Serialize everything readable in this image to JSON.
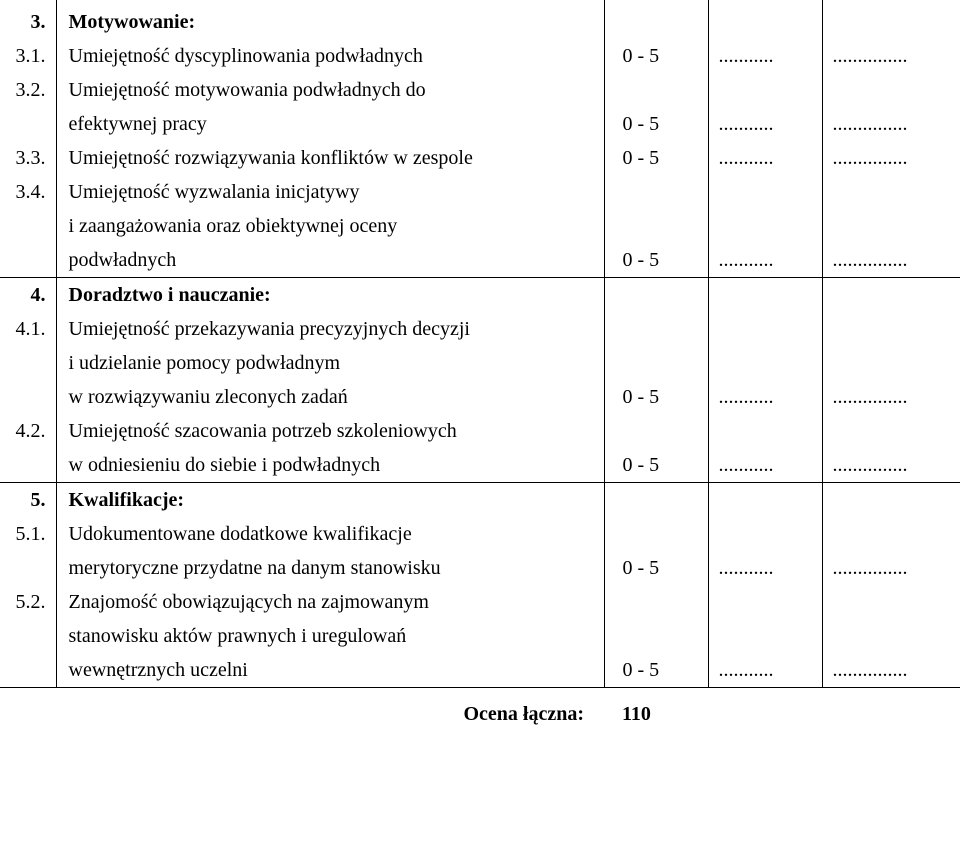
{
  "rows": [
    {
      "num": "3.",
      "text": "Motywowanie:",
      "bold": true,
      "score": "",
      "dots1": "",
      "dots2": "",
      "sep": "none"
    },
    {
      "num": "3.1.",
      "text": "Umiejętność dyscyplinowania podwładnych",
      "bold": false,
      "score": "0 - 5",
      "dots1": "...........",
      "dots2": "...............",
      "sep": "none"
    },
    {
      "num": "3.2.",
      "text": "Umiejętność motywowania podwładnych do",
      "bold": false,
      "score": "",
      "dots1": "",
      "dots2": "",
      "sep": "none"
    },
    {
      "num": "",
      "text": "efektywnej pracy",
      "bold": false,
      "score": "0 - 5",
      "dots1": "...........",
      "dots2": "...............",
      "sep": "none"
    },
    {
      "num": "3.3.",
      "text": "Umiejętność rozwiązywania konfliktów w zespole",
      "bold": false,
      "score": "0 - 5",
      "dots1": "...........",
      "dots2": "...............",
      "sep": "none"
    },
    {
      "num": "3.4.",
      "text": "Umiejętność wyzwalania inicjatywy",
      "bold": false,
      "score": "",
      "dots1": "",
      "dots2": "",
      "sep": "none"
    },
    {
      "num": "",
      "text": "i zaangażowania oraz obiektywnej oceny",
      "bold": false,
      "score": "",
      "dots1": "",
      "dots2": "",
      "sep": "none"
    },
    {
      "num": "",
      "text": "podwładnych",
      "bold": false,
      "score": "0 - 5",
      "dots1": "...........",
      "dots2": "...............",
      "sep": "full"
    },
    {
      "num": "4.",
      "text": "Doradztwo i nauczanie:",
      "bold": true,
      "score": "",
      "dots1": "",
      "dots2": "",
      "sep": "none"
    },
    {
      "num": "4.1.",
      "text": "Umiejętność przekazywania precyzyjnych decyzji",
      "bold": false,
      "score": "",
      "dots1": "",
      "dots2": "",
      "sep": "none"
    },
    {
      "num": "",
      "text": "i udzielanie pomocy podwładnym",
      "bold": false,
      "score": "",
      "dots1": "",
      "dots2": "",
      "sep": "none"
    },
    {
      "num": "",
      "text": "w rozwiązywaniu zleconych zadań",
      "bold": false,
      "score": "0 - 5",
      "dots1": "...........",
      "dots2": "...............",
      "sep": "none"
    },
    {
      "num": "4.2.",
      "text": "Umiejętność szacowania potrzeb szkoleniowych",
      "bold": false,
      "score": "",
      "dots1": "",
      "dots2": "",
      "sep": "none"
    },
    {
      "num": "",
      "text": "w odniesieniu do siebie i podwładnych",
      "bold": false,
      "score": "0 - 5",
      "dots1": "...........",
      "dots2": "...............",
      "sep": "full"
    },
    {
      "num": "5.",
      "text": "Kwalifikacje:",
      "bold": true,
      "score": "",
      "dots1": "",
      "dots2": "",
      "sep": "none"
    },
    {
      "num": "5.1.",
      "text": "Udokumentowane dodatkowe kwalifikacje",
      "bold": false,
      "score": "",
      "dots1": "",
      "dots2": "",
      "sep": "none"
    },
    {
      "num": "",
      "text": "merytoryczne przydatne na danym stanowisku",
      "bold": false,
      "score": "0 - 5",
      "dots1": "...........",
      "dots2": "...............",
      "sep": "none"
    },
    {
      "num": "5.2.",
      "text": "Znajomość obowiązujących na zajmowanym",
      "bold": false,
      "score": "",
      "dots1": "",
      "dots2": "",
      "sep": "none"
    },
    {
      "num": "",
      "text": "stanowisku aktów prawnych i uregulowań",
      "bold": false,
      "score": "",
      "dots1": "",
      "dots2": "",
      "sep": "none"
    },
    {
      "num": "",
      "text": "wewnętrznych uczelni",
      "bold": false,
      "score": "0 - 5",
      "dots1": "...........",
      "dots2": "...............",
      "sep": "short"
    }
  ],
  "total": {
    "label": "Ocena łączna:",
    "value": "110"
  }
}
